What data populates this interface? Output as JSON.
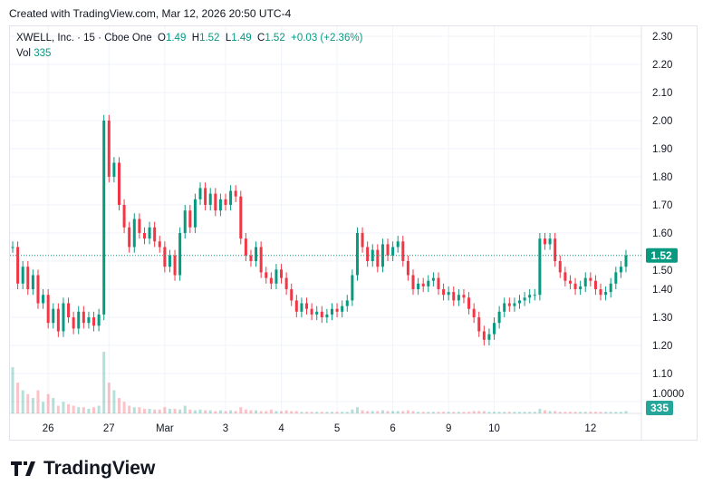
{
  "credit": "Created with TradingView.com, Mar 12, 2026 20:50 UTC-4",
  "legend": {
    "symbol": "XWELL, Inc.",
    "interval": "15",
    "exchange": "Cboe One",
    "o_label": "O",
    "o": "1.49",
    "h_label": "H",
    "h": "1.52",
    "l_label": "L",
    "l": "1.49",
    "c_label": "C",
    "c": "1.52",
    "change": "+0.03 (+2.36%)",
    "vol_label": "Vol",
    "vol": "335"
  },
  "colors": {
    "up": "#089981",
    "down": "#f23645",
    "grid": "#f0f3fa"
  },
  "logo_text": "TradingView",
  "chart_data": {
    "type": "candlestick",
    "ylim": [
      1.0,
      2.3
    ],
    "yticks": [
      "2.30",
      "2.20",
      "2.10",
      "2.00",
      "1.90",
      "1.80",
      "1.70",
      "1.60",
      "1.50",
      "1.40",
      "1.30",
      "1.20",
      "1.10",
      "1.0000"
    ],
    "xticks": [
      {
        "label": "26",
        "bar": 7
      },
      {
        "label": "27",
        "bar": 19
      },
      {
        "label": "Mar",
        "bar": 30
      },
      {
        "label": "3",
        "bar": 42
      },
      {
        "label": "4",
        "bar": 53
      },
      {
        "label": "5",
        "bar": 64
      },
      {
        "label": "6",
        "bar": 75
      },
      {
        "label": "9",
        "bar": 86
      },
      {
        "label": "10",
        "bar": 95
      },
      {
        "label": "12",
        "bar": 114
      }
    ],
    "last_price": "1.52",
    "last_volume": "335",
    "closes": [
      1.55,
      1.42,
      1.48,
      1.4,
      1.45,
      1.35,
      1.38,
      1.28,
      1.33,
      1.25,
      1.35,
      1.3,
      1.26,
      1.32,
      1.28,
      1.3,
      1.27,
      1.31,
      2.0,
      1.8,
      1.85,
      1.7,
      1.62,
      1.55,
      1.65,
      1.6,
      1.58,
      1.62,
      1.57,
      1.55,
      1.48,
      1.52,
      1.45,
      1.6,
      1.68,
      1.62,
      1.72,
      1.76,
      1.7,
      1.74,
      1.68,
      1.72,
      1.7,
      1.75,
      1.73,
      1.58,
      1.52,
      1.5,
      1.55,
      1.46,
      1.44,
      1.42,
      1.47,
      1.44,
      1.4,
      1.36,
      1.32,
      1.35,
      1.33,
      1.31,
      1.32,
      1.3,
      1.31,
      1.33,
      1.32,
      1.34,
      1.36,
      1.45,
      1.6,
      1.55,
      1.5,
      1.54,
      1.48,
      1.56,
      1.52,
      1.55,
      1.57,
      1.5,
      1.45,
      1.4,
      1.42,
      1.41,
      1.43,
      1.44,
      1.4,
      1.38,
      1.39,
      1.36,
      1.38,
      1.37,
      1.33,
      1.3,
      1.25,
      1.22,
      1.24,
      1.28,
      1.32,
      1.35,
      1.34,
      1.35,
      1.36,
      1.37,
      1.38,
      1.38,
      1.58,
      1.56,
      1.58,
      1.5,
      1.46,
      1.43,
      1.42,
      1.4,
      1.41,
      1.44,
      1.43,
      1.4,
      1.38,
      1.39,
      1.42,
      1.46,
      1.48,
      1.52
    ],
    "volumes": [
      60,
      40,
      30,
      25,
      20,
      30,
      15,
      25,
      20,
      10,
      15,
      12,
      10,
      8,
      8,
      6,
      8,
      10,
      80,
      40,
      30,
      20,
      15,
      10,
      8,
      8,
      6,
      6,
      5,
      5,
      8,
      6,
      6,
      5,
      10,
      5,
      4,
      5,
      4,
      4,
      3,
      4,
      3,
      4,
      3,
      8,
      5,
      4,
      4,
      3,
      3,
      5,
      3,
      3,
      4,
      3,
      3,
      2,
      2,
      2,
      2,
      2,
      2,
      2,
      2,
      2,
      2,
      5,
      8,
      4,
      3,
      3,
      3,
      4,
      3,
      3,
      3,
      3,
      4,
      3,
      2,
      2,
      2,
      2,
      2,
      2,
      2,
      2,
      2,
      2,
      2,
      3,
      3,
      3,
      2,
      2,
      2,
      2,
      2,
      2,
      2,
      2,
      2,
      2,
      6,
      4,
      3,
      3,
      2,
      2,
      2,
      2,
      2,
      2,
      2,
      2,
      2,
      2,
      2,
      2,
      2,
      3
    ]
  }
}
